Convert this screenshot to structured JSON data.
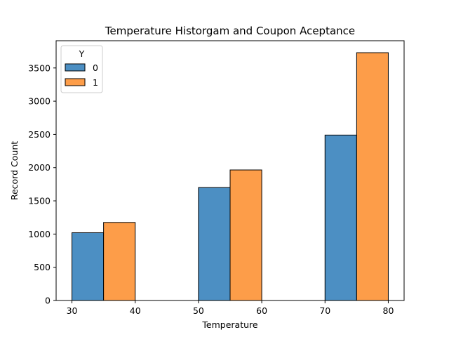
{
  "chart_data": {
    "type": "bar",
    "title": "Temperature Historgam and Coupon Aceptance",
    "xlabel": "Temperature",
    "ylabel": "Record Count",
    "xlim": [
      27.5,
      82.5
    ],
    "ylim": [
      0,
      3910
    ],
    "xticks": [
      30,
      40,
      50,
      60,
      70,
      80
    ],
    "yticks": [
      0,
      500,
      1000,
      1500,
      2000,
      2500,
      3000,
      3500
    ],
    "legend": {
      "title": "Y",
      "placement": "top-left"
    },
    "series": [
      {
        "name": "0",
        "color": "#4c8fc3",
        "bins": [
          {
            "x0": 30,
            "x1": 35,
            "value": 1020
          },
          {
            "x0": 50,
            "x1": 55,
            "value": 1700
          },
          {
            "x0": 70,
            "x1": 75,
            "value": 2490
          }
        ]
      },
      {
        "name": "1",
        "color": "#fd9d49",
        "bins": [
          {
            "x0": 35,
            "x1": 40,
            "value": 1175
          },
          {
            "x0": 55,
            "x1": 60,
            "value": 1965
          },
          {
            "x0": 75,
            "x1": 80,
            "value": 3730
          }
        ]
      }
    ],
    "grid": false
  }
}
